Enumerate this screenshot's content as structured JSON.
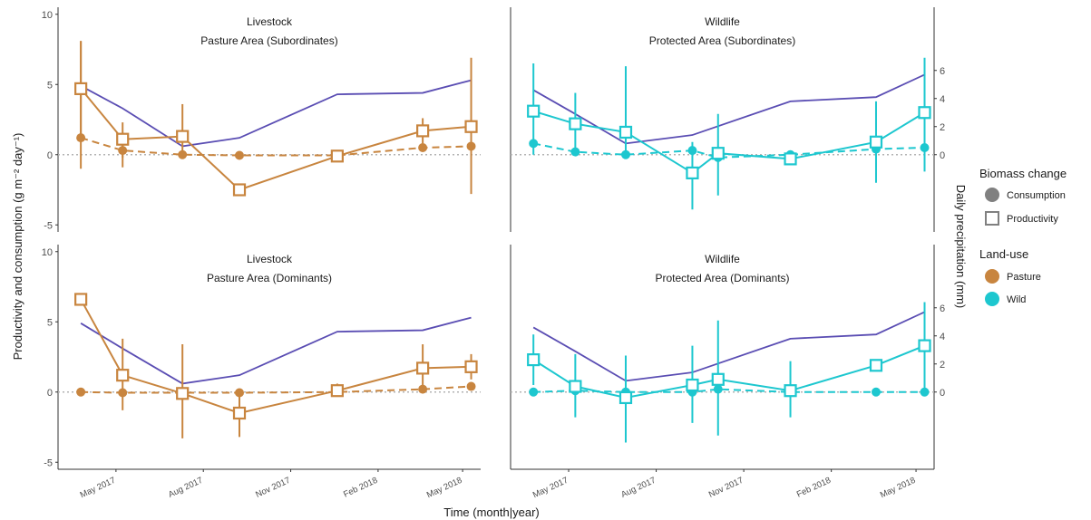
{
  "axes": {
    "xlabel": "Time (month|year)",
    "ylabel_left": "Productivity and consumption (g m⁻² day⁻¹)",
    "ylabel_right": "Daily precipitation (mm)",
    "y_left_ticks": [
      "10",
      "5",
      "0",
      "-5"
    ],
    "y_right_ticks": [
      "6",
      "4",
      "2",
      "0"
    ],
    "x_ticks": [
      "May 2017",
      "Aug 2017",
      "Nov 2017",
      "Feb 2018",
      "May 2018"
    ]
  },
  "legend": {
    "biomass_title": "Biomass change",
    "consumption": "Consumption",
    "productivity": "Productivity",
    "landuse_title": "Land-use",
    "pasture": "Pasture",
    "wild": "Wild"
  },
  "colors": {
    "pasture": "#c8853f",
    "wild": "#1dc7cf",
    "precipitation": "#5a4db3",
    "reference": "#b3b3b3",
    "legend_grey": "#808080"
  },
  "chart_data": [
    {
      "type": "line",
      "panel": "top-left",
      "title_line1": "Livestock",
      "title_line2": "Pasture Area (Subordinates)",
      "ylim": [
        -5.5,
        10.5
      ],
      "precip_ylim": [
        0,
        6
      ],
      "xlim": [
        "2017-03-01",
        "2018-05-20"
      ],
      "productivity": [
        {
          "x": "2017-03-25",
          "y": 4.7,
          "lo": 1.3,
          "hi": 8.1
        },
        {
          "x": "2017-05-08",
          "y": 1.1,
          "lo": -0.2,
          "hi": 2.3
        },
        {
          "x": "2017-07-10",
          "y": 1.3,
          "lo": -0.3,
          "hi": 3.6
        },
        {
          "x": "2017-09-08",
          "y": -2.5
        },
        {
          "x": "2017-12-20",
          "y": -0.1
        },
        {
          "x": "2018-03-20",
          "y": 1.7,
          "lo": 0.8,
          "hi": 2.6
        },
        {
          "x": "2018-05-10",
          "y": 2.0,
          "lo": -2.8,
          "hi": 6.9
        }
      ],
      "consumption": [
        {
          "x": "2017-03-25",
          "y": 1.2,
          "lo": -1.0,
          "hi": 8.1
        },
        {
          "x": "2017-05-08",
          "y": 0.3,
          "lo": -0.9,
          "hi": 1.5
        },
        {
          "x": "2017-07-10",
          "y": 0.0
        },
        {
          "x": "2017-09-08",
          "y": -0.05
        },
        {
          "x": "2017-12-20",
          "y": -0.05
        },
        {
          "x": "2018-03-20",
          "y": 0.5
        },
        {
          "x": "2018-05-10",
          "y": 0.6
        }
      ],
      "precipitation": [
        {
          "x": "2017-03-25",
          "y": 4.9
        },
        {
          "x": "2017-05-08",
          "y": 3.3
        },
        {
          "x": "2017-07-10",
          "y": 0.6
        },
        {
          "x": "2017-09-08",
          "y": 1.2
        },
        {
          "x": "2017-12-20",
          "y": 4.3
        },
        {
          "x": "2018-03-20",
          "y": 4.4
        },
        {
          "x": "2018-05-10",
          "y": 5.3
        }
      ]
    },
    {
      "type": "line",
      "panel": "top-right",
      "title_line1": "Wildlife",
      "title_line2": "Protected Area (Subordinates)",
      "ylim": [
        -5.5,
        10.5
      ],
      "precip_ylim": [
        0,
        6
      ],
      "xlim": [
        "2017-03-01",
        "2018-05-20"
      ],
      "productivity": [
        {
          "x": "2017-03-25",
          "y": 3.1,
          "lo": 0.0,
          "hi": 6.5
        },
        {
          "x": "2017-05-08",
          "y": 2.2,
          "lo": 0.5,
          "hi": 4.4
        },
        {
          "x": "2017-06-30",
          "y": 1.6,
          "lo": -0.2,
          "hi": 6.3
        },
        {
          "x": "2017-09-08",
          "y": -1.3,
          "lo": -3.9,
          "hi": 0.9
        },
        {
          "x": "2017-10-05",
          "y": 0.1,
          "lo": -2.9,
          "hi": 2.9
        },
        {
          "x": "2017-12-20",
          "y": -0.3
        },
        {
          "x": "2018-03-20",
          "y": 0.9,
          "lo": -2.0,
          "hi": 3.8
        },
        {
          "x": "2018-05-10",
          "y": 3.0,
          "lo": -1.2,
          "hi": 6.9
        }
      ],
      "consumption": [
        {
          "x": "2017-03-25",
          "y": 0.8
        },
        {
          "x": "2017-05-08",
          "y": 0.2
        },
        {
          "x": "2017-06-30",
          "y": 0.0
        },
        {
          "x": "2017-09-08",
          "y": 0.3
        },
        {
          "x": "2017-10-05",
          "y": -0.2
        },
        {
          "x": "2017-12-20",
          "y": 0.0
        },
        {
          "x": "2018-03-20",
          "y": 0.4
        },
        {
          "x": "2018-05-10",
          "y": 0.5
        }
      ],
      "precipitation": [
        {
          "x": "2017-03-25",
          "y": 4.6
        },
        {
          "x": "2017-05-08",
          "y": 2.9
        },
        {
          "x": "2017-06-30",
          "y": 0.8
        },
        {
          "x": "2017-09-08",
          "y": 1.4
        },
        {
          "x": "2017-12-20",
          "y": 3.8
        },
        {
          "x": "2018-03-20",
          "y": 4.1
        },
        {
          "x": "2018-05-10",
          "y": 5.7
        }
      ]
    },
    {
      "type": "line",
      "panel": "bottom-left",
      "title_line1": "Livestock",
      "title_line2": "Pasture Area (Dominants)",
      "ylim": [
        -5.5,
        10.5
      ],
      "precip_ylim": [
        0,
        6
      ],
      "xlim": [
        "2017-03-01",
        "2018-05-20"
      ],
      "productivity": [
        {
          "x": "2017-03-25",
          "y": 6.6
        },
        {
          "x": "2017-05-08",
          "y": 1.2,
          "lo": -1.3,
          "hi": 3.8
        },
        {
          "x": "2017-07-10",
          "y": -0.1,
          "lo": -3.3,
          "hi": 3.4
        },
        {
          "x": "2017-09-08",
          "y": -1.5,
          "lo": -3.2,
          "hi": 0.1
        },
        {
          "x": "2017-12-20",
          "y": 0.1,
          "lo": -0.3,
          "hi": 0.6
        },
        {
          "x": "2018-03-20",
          "y": 1.7,
          "lo": 0.0,
          "hi": 3.4
        },
        {
          "x": "2018-05-10",
          "y": 1.8,
          "lo": 0.9,
          "hi": 2.7
        }
      ],
      "consumption": [
        {
          "x": "2017-03-25",
          "y": 0.0
        },
        {
          "x": "2017-05-08",
          "y": -0.05
        },
        {
          "x": "2017-07-10",
          "y": -0.05
        },
        {
          "x": "2017-09-08",
          "y": -0.05
        },
        {
          "x": "2017-12-20",
          "y": 0.0
        },
        {
          "x": "2018-03-20",
          "y": 0.2
        },
        {
          "x": "2018-05-10",
          "y": 0.4
        }
      ],
      "precipitation": [
        {
          "x": "2017-03-25",
          "y": 4.9
        },
        {
          "x": "2017-05-08",
          "y": 3.1
        },
        {
          "x": "2017-07-10",
          "y": 0.6
        },
        {
          "x": "2017-09-08",
          "y": 1.2
        },
        {
          "x": "2017-12-20",
          "y": 4.3
        },
        {
          "x": "2018-03-20",
          "y": 4.4
        },
        {
          "x": "2018-05-10",
          "y": 5.3
        }
      ]
    },
    {
      "type": "line",
      "panel": "bottom-right",
      "title_line1": "Wildlife",
      "title_line2": "Protected Area (Dominants)",
      "ylim": [
        -5.5,
        10.5
      ],
      "precip_ylim": [
        0,
        6
      ],
      "xlim": [
        "2017-03-01",
        "2018-05-20"
      ],
      "productivity": [
        {
          "x": "2017-03-25",
          "y": 2.3,
          "lo": 0.5,
          "hi": 4.1
        },
        {
          "x": "2017-05-08",
          "y": 0.4,
          "lo": -1.8,
          "hi": 2.7
        },
        {
          "x": "2017-06-30",
          "y": -0.4,
          "lo": -3.6,
          "hi": 2.6
        },
        {
          "x": "2017-09-08",
          "y": 0.5,
          "lo": -2.2,
          "hi": 3.3
        },
        {
          "x": "2017-10-05",
          "y": 0.9,
          "lo": -3.1,
          "hi": 5.1
        },
        {
          "x": "2017-12-20",
          "y": 0.1,
          "lo": -1.8,
          "hi": 2.2
        },
        {
          "x": "2018-03-20",
          "y": 1.9
        },
        {
          "x": "2018-05-10",
          "y": 3.3,
          "lo": -0.1,
          "hi": 6.4
        }
      ],
      "consumption": [
        {
          "x": "2017-03-25",
          "y": 0.0
        },
        {
          "x": "2017-05-08",
          "y": 0.1
        },
        {
          "x": "2017-06-30",
          "y": 0.0
        },
        {
          "x": "2017-09-08",
          "y": 0.0
        },
        {
          "x": "2017-10-05",
          "y": 0.2
        },
        {
          "x": "2017-12-20",
          "y": 0.0
        },
        {
          "x": "2018-03-20",
          "y": 0.0
        },
        {
          "x": "2018-05-10",
          "y": 0.0
        }
      ],
      "precipitation": [
        {
          "x": "2017-03-25",
          "y": 4.6
        },
        {
          "x": "2017-05-08",
          "y": 2.9
        },
        {
          "x": "2017-06-30",
          "y": 0.8
        },
        {
          "x": "2017-09-08",
          "y": 1.4
        },
        {
          "x": "2017-12-20",
          "y": 3.8
        },
        {
          "x": "2018-03-20",
          "y": 4.1
        },
        {
          "x": "2018-05-10",
          "y": 5.7
        }
      ]
    }
  ]
}
